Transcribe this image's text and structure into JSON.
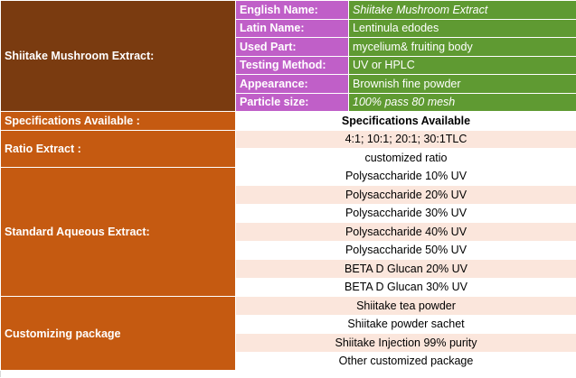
{
  "product": {
    "section_label": "Shiitake Mushroom Extract:",
    "rows": [
      {
        "key": "English Name:",
        "value": "Shiitake Mushroom Extract"
      },
      {
        "key": "Latin Name:",
        "value": "Lentinula edodes"
      },
      {
        "key": "Used Part:",
        "value": "mycelium& fruiting body"
      },
      {
        "key": "Testing Method:",
        "value": "UV or HPLC"
      },
      {
        "key": "Appearance:",
        "value": "Brownish fine powder"
      },
      {
        "key": "Particle size:",
        "value": "100% pass 80 mesh"
      }
    ]
  },
  "specifications": {
    "label": "Specifications Available  :",
    "header": "Specifications Available"
  },
  "ratio": {
    "label": "Ratio Extract :",
    "items": [
      "4:1; 10:1; 20:1; 30:1TLC",
      "customized ratio"
    ]
  },
  "standard": {
    "label": "Standard Aqueous Extract:",
    "items": [
      "Polysaccharide 10% UV",
      "Polysaccharide 20% UV",
      "Polysaccharide 30% UV",
      "Polysaccharide 40% UV",
      "Polysaccharide 50% UV",
      "BETA D Glucan 20% UV",
      "BETA D Glucan 30% UV"
    ]
  },
  "customizing": {
    "label": "Customizing package",
    "items": [
      "Shiitake tea powder",
      "Shiitake powder sachet",
      "Shiitake  Injection 99% purity",
      "Other customized package"
    ]
  },
  "colors": {
    "brown": "#7a3b10",
    "orange": "#c55a11",
    "purple": "#c05fc8",
    "green": "#5f9a32",
    "pink": "#fbe6dc"
  }
}
